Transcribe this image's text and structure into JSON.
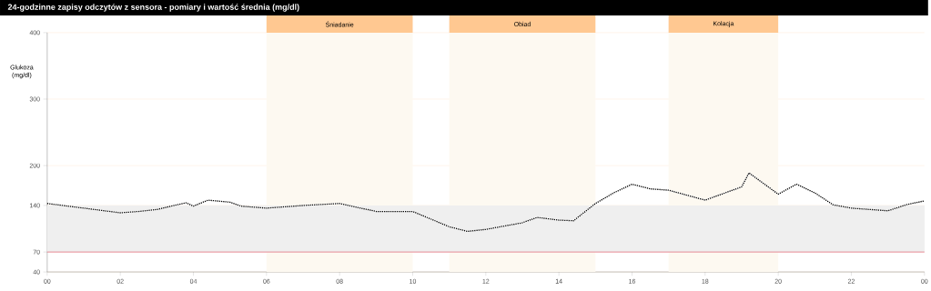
{
  "chart_data": {
    "type": "line",
    "title": "24-godzinne zapisy odczytów z sensora - pomiary i wartość średnia (mg/dl)",
    "ylabel": "Glukoza (mg/dl)",
    "xlim": [
      0,
      24
    ],
    "xticks": [
      {
        "value": 0,
        "label": "00"
      },
      {
        "value": 2,
        "label": "02"
      },
      {
        "value": 4,
        "label": "04"
      },
      {
        "value": 6,
        "label": "06"
      },
      {
        "value": 8,
        "label": "08"
      },
      {
        "value": 10,
        "label": "10"
      },
      {
        "value": 12,
        "label": "12"
      },
      {
        "value": 14,
        "label": "14"
      },
      {
        "value": 16,
        "label": "16"
      },
      {
        "value": 18,
        "label": "18"
      },
      {
        "value": 20,
        "label": "20"
      },
      {
        "value": 22,
        "label": "22"
      },
      {
        "value": 24,
        "label": "00"
      }
    ],
    "ylim": [
      40,
      400
    ],
    "yticks": [
      40,
      70,
      140,
      200,
      300,
      400
    ],
    "grid": "y",
    "line_style": "dotted",
    "series": [
      {
        "color": "#000000",
        "x": [
          0,
          1,
          2,
          2.5,
          3,
          3.8,
          4,
          4.4,
          5,
          5.3,
          6,
          7,
          8,
          9,
          10,
          11,
          11.5,
          12,
          13,
          13.4,
          14,
          14.4,
          15,
          15.5,
          16,
          16.5,
          17,
          18,
          19,
          19.2,
          19.5,
          20,
          20.5,
          21,
          21.5,
          22,
          23,
          23.5,
          24
        ],
        "values": [
          143,
          136,
          129,
          131,
          134,
          144,
          139,
          148,
          145,
          139,
          136,
          140,
          143,
          131,
          131,
          108,
          101,
          104,
          114,
          122,
          118,
          117,
          143,
          159,
          172,
          165,
          163,
          148,
          168,
          189,
          177,
          157,
          172,
          159,
          141,
          136,
          132,
          141,
          147
        ]
      }
    ],
    "bands": [
      {
        "axis": "x",
        "from": 6,
        "to": 10,
        "label": "Śniadanie",
        "color": "#fdf9f1"
      },
      {
        "axis": "x",
        "from": 11,
        "to": 15,
        "label": "Obiad",
        "color": "#fdf9f1"
      },
      {
        "axis": "x",
        "from": 17,
        "to": 20,
        "label": "Kolacja",
        "color": "#fdf9f1"
      },
      {
        "axis": "y",
        "from": 70,
        "to": 140,
        "color": "#efefef"
      }
    ],
    "ref_lines": [
      {
        "axis": "y",
        "value": 70,
        "color": "#e07080"
      }
    ]
  }
}
